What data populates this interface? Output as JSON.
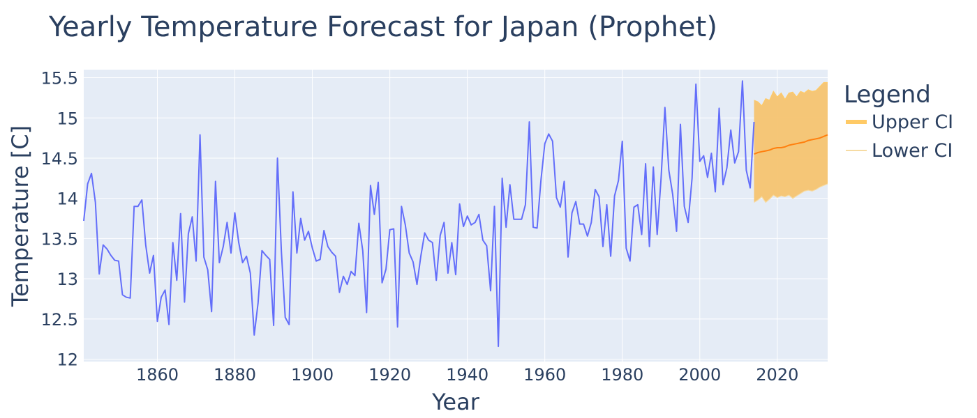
{
  "chart_data": {
    "type": "line",
    "title": "Yearly Temperature Forecast for Japan (Prophet)",
    "xlabel": "Year",
    "ylabel": "Temperature [C]",
    "xlim": [
      1841,
      2033
    ],
    "ylim": [
      11.97,
      15.6
    ],
    "x_ticks": [
      1860,
      1880,
      1900,
      1920,
      1940,
      1960,
      1980,
      2000,
      2020
    ],
    "y_ticks": [
      12,
      12.5,
      13,
      13.5,
      14,
      14.5,
      15,
      15.5
    ],
    "y_tick_labels": [
      "12",
      "12.5",
      "13",
      "13.5",
      "14",
      "14.5",
      "15",
      "15.5"
    ],
    "grid": true,
    "legend": {
      "title": "Legend",
      "placement": "top-right",
      "entries": [
        "Upper CI",
        "Lower CI"
      ]
    },
    "colors": {
      "observed": "#636efa",
      "forecast": "#ff7f0e",
      "ci_fill": "#f5c470",
      "upper_ci": "#ffca66",
      "lower_ci": "#f6dba3",
      "plot_bg": "#e5ecf6",
      "grid": "#ffffff",
      "text": "#2a3f5f"
    },
    "observed": {
      "start_year": 1841,
      "values": [
        13.72,
        14.18,
        14.31,
        13.95,
        13.06,
        13.42,
        13.37,
        13.29,
        13.23,
        13.22,
        12.8,
        12.77,
        12.76,
        13.9,
        13.9,
        13.98,
        13.42,
        13.07,
        13.29,
        12.47,
        12.77,
        12.86,
        12.43,
        13.45,
        12.98,
        13.81,
        12.71,
        13.56,
        13.77,
        13.22,
        14.79,
        13.27,
        13.11,
        12.59,
        14.21,
        13.2,
        13.4,
        13.7,
        13.32,
        13.82,
        13.45,
        13.2,
        13.28,
        13.07,
        12.3,
        12.7,
        13.35,
        13.29,
        13.24,
        12.42,
        14.5,
        13.34,
        12.52,
        12.43,
        14.08,
        13.32,
        13.75,
        13.48,
        13.59,
        13.38,
        13.22,
        13.24,
        13.6,
        13.4,
        13.33,
        13.28,
        12.83,
        13.03,
        12.93,
        13.09,
        13.04,
        13.69,
        13.35,
        12.58,
        14.16,
        13.8,
        14.2,
        12.95,
        13.12,
        13.61,
        13.62,
        12.4,
        13.9,
        13.67,
        13.32,
        13.21,
        12.93,
        13.28,
        13.57,
        13.48,
        13.45,
        12.98,
        13.54,
        13.7,
        13.07,
        13.45,
        13.05,
        13.93,
        13.65,
        13.78,
        13.67,
        13.7,
        13.8,
        13.48,
        13.41,
        12.85,
        13.9,
        12.16,
        14.25,
        13.64,
        14.17,
        13.74,
        13.74,
        13.74,
        13.92,
        14.95,
        13.64,
        13.63,
        14.22,
        14.68,
        14.8,
        14.71,
        14.01,
        13.89,
        14.21,
        13.27,
        13.82,
        13.96,
        13.68,
        13.68,
        13.53,
        13.7,
        14.11,
        14.02,
        13.4,
        13.92,
        13.28,
        14.03,
        14.22,
        14.71,
        13.38,
        13.22,
        13.89,
        13.92,
        13.55,
        14.43,
        13.4,
        14.39,
        13.55,
        14.25,
        15.13,
        14.35,
        14.05,
        13.59,
        14.92,
        13.9,
        13.7,
        14.25,
        15.42,
        14.46,
        14.53,
        14.26,
        14.56,
        14.08,
        15.12,
        14.17,
        14.38,
        14.85,
        14.44,
        14.58,
        15.46,
        14.35,
        14.13,
        14.95
      ]
    },
    "forecast": {
      "start_year": 2014,
      "yhat": [
        14.55,
        14.57,
        14.58,
        14.59,
        14.6,
        14.62,
        14.63,
        14.63,
        14.64,
        14.66,
        14.67,
        14.68,
        14.69,
        14.7,
        14.72,
        14.73,
        14.74,
        14.75,
        14.77,
        14.79
      ],
      "upper": [
        15.22,
        15.2,
        15.15,
        15.24,
        15.22,
        15.33,
        15.26,
        15.31,
        15.23,
        15.31,
        15.32,
        15.26,
        15.33,
        15.31,
        15.35,
        15.33,
        15.34,
        15.39,
        15.44,
        15.44
      ],
      "lower": [
        13.95,
        13.98,
        14.02,
        13.95,
        13.99,
        14.04,
        14.01,
        14.03,
        14.02,
        14.04,
        14.0,
        14.03,
        14.06,
        14.09,
        14.1,
        14.09,
        14.11,
        14.14,
        14.16,
        14.18
      ]
    }
  }
}
